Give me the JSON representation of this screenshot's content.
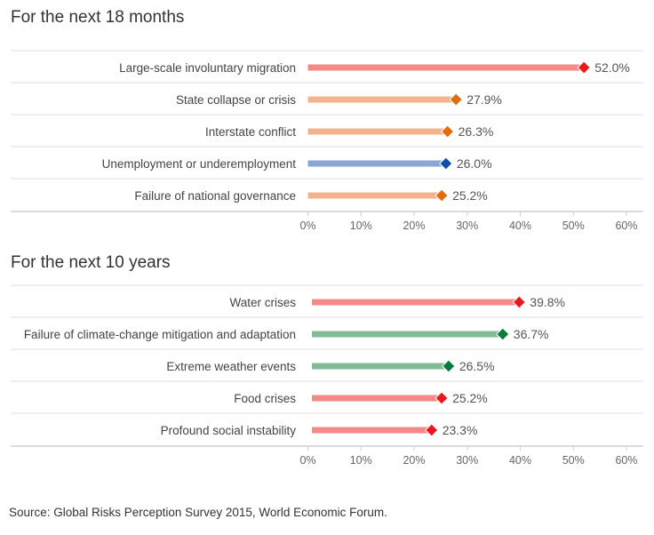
{
  "chart_data": [
    {
      "type": "bar",
      "title": "For the next 18 months",
      "xlim": [
        0,
        60
      ],
      "xticks": [
        "0%",
        "10%",
        "20%",
        "30%",
        "40%",
        "50%",
        "60%"
      ],
      "grid": false,
      "categories": [
        "Large-scale involuntary migration",
        "State collapse or crisis",
        "Interstate conflict",
        "Unemployment or underemployment",
        "Failure of national governance"
      ],
      "values": [
        52.0,
        27.9,
        26.3,
        26.0,
        25.2
      ],
      "labels": [
        "52.0%",
        "27.9%",
        "26.3%",
        "26.0%",
        "25.2%"
      ],
      "colors": [
        "red",
        "orange",
        "orange",
        "blue",
        "orange"
      ]
    },
    {
      "type": "bar",
      "title": "For the next 10 years",
      "xlim": [
        0,
        60
      ],
      "xticks": [
        "0%",
        "10%",
        "20%",
        "30%",
        "40%",
        "50%",
        "60%"
      ],
      "grid": false,
      "categories": [
        "Water crises",
        "Failure of climate-change mitigation and adaptation",
        "Extreme weather events",
        "Food crises",
        "Profound social instability"
      ],
      "values": [
        39.8,
        36.7,
        26.5,
        25.2,
        23.3
      ],
      "labels": [
        "39.8%",
        "36.7%",
        "26.5%",
        "25.2%",
        "23.3%"
      ],
      "colors": [
        "red",
        "green",
        "green",
        "red",
        "red"
      ]
    }
  ],
  "palette": {
    "red": {
      "bar": "#f4898a",
      "marker": "#e8191c"
    },
    "orange": {
      "bar": "#f2b48f",
      "marker": "#e36c0a"
    },
    "blue": {
      "bar": "#88a7d4",
      "marker": "#0f4fa8"
    },
    "green": {
      "bar": "#80bb98",
      "marker": "#0b7a3d"
    }
  },
  "source": "Source: Global Risks Perception Survey 2015, World Economic Forum."
}
